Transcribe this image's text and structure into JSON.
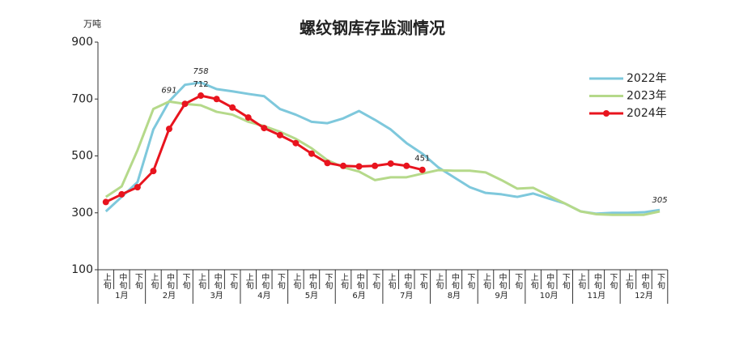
{
  "chart_data": {
    "type": "line",
    "title": "螺纹钢库存监测情况",
    "y_axis_label": "万吨",
    "categories": [
      "上旬",
      "中旬",
      "下旬",
      "上旬",
      "中旬",
      "下旬",
      "上旬",
      "中旬",
      "下旬",
      "上旬",
      "中旬",
      "下旬",
      "上旬",
      "中旬",
      "下旬",
      "上旬",
      "中旬",
      "下旬",
      "上旬",
      "中旬",
      "下旬",
      "上旬",
      "中旬",
      "下旬",
      "上旬",
      "中旬",
      "下旬",
      "上旬",
      "中旬",
      "下旬",
      "上旬",
      "中旬",
      "下旬",
      "上旬",
      "中旬",
      "下旬"
    ],
    "months": [
      "1月",
      "2月",
      "3月",
      "4月",
      "5月",
      "6月",
      "7月",
      "8月",
      "9月",
      "10月",
      "11月",
      "12月"
    ],
    "ylim": [
      100,
      900
    ],
    "yticks": [
      100,
      300,
      500,
      700,
      900
    ],
    "legend": "upper right",
    "series": [
      {
        "name": "2022年",
        "color": "#7ec8dc",
        "marker": false,
        "values": [
          305,
          356,
          408,
          593,
          692,
          750,
          758,
          735,
          727,
          718,
          710,
          665,
          645,
          620,
          615,
          632,
          658,
          627,
          593,
          545,
          508,
          460,
          425,
          390,
          370,
          365,
          356,
          368,
          350,
          333,
          305,
          297,
          300,
          300,
          302,
          310
        ],
        "value_labels": [
          null,
          null,
          null,
          null,
          null,
          null,
          "758",
          null,
          null,
          null,
          null,
          null,
          null,
          null,
          null,
          null,
          null,
          null,
          null,
          null,
          null,
          null,
          null,
          null,
          null,
          null,
          null,
          null,
          null,
          null,
          null,
          null,
          null,
          null,
          null,
          null
        ]
      },
      {
        "name": "2023年",
        "color": "#b5d98a",
        "marker": false,
        "values": [
          356,
          393,
          520,
          665,
          691,
          683,
          678,
          655,
          645,
          620,
          605,
          585,
          560,
          527,
          485,
          460,
          445,
          415,
          425,
          425,
          438,
          450,
          448,
          448,
          442,
          415,
          385,
          388,
          360,
          333,
          305,
          295,
          293,
          293,
          293,
          305
        ],
        "value_labels": [
          null,
          null,
          null,
          null,
          "691",
          null,
          null,
          null,
          null,
          null,
          null,
          null,
          null,
          null,
          null,
          null,
          null,
          null,
          null,
          null,
          null,
          null,
          null,
          null,
          null,
          null,
          null,
          null,
          null,
          null,
          null,
          null,
          null,
          null,
          null,
          "305"
        ]
      },
      {
        "name": "2024年",
        "color": "#e8141e",
        "marker": true,
        "values": [
          338,
          365,
          390,
          447,
          595,
          683,
          712,
          700,
          670,
          635,
          598,
          573,
          545,
          508,
          475,
          465,
          463,
          465,
          473,
          465,
          451,
          null,
          null,
          null,
          null,
          null,
          null,
          null,
          null,
          null,
          null,
          null,
          null,
          null,
          null,
          null
        ],
        "value_labels": [
          null,
          null,
          null,
          null,
          null,
          null,
          "712",
          null,
          null,
          null,
          null,
          null,
          null,
          null,
          null,
          null,
          null,
          null,
          null,
          null,
          "451",
          null,
          null,
          null,
          null,
          null,
          null,
          null,
          null,
          null,
          null,
          null,
          null,
          null,
          null,
          null
        ]
      }
    ]
  }
}
